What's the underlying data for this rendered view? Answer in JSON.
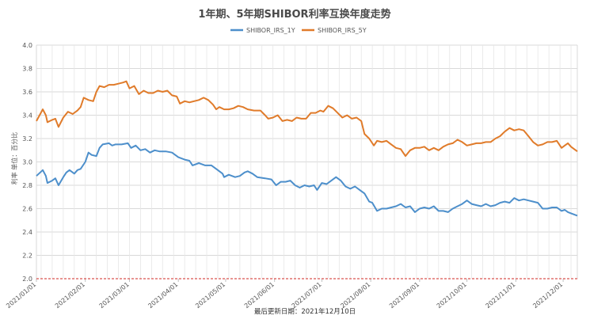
{
  "chart_data": {
    "type": "line",
    "title": "1年期、5年期SHIBOR利率互换年度走势",
    "ylabel": "利率 单位：百分比",
    "footer": "最后更新日期：2021年12月10日",
    "ylim": [
      2.0,
      4.0
    ],
    "yticks": [
      "2.0",
      "2.2",
      "2.4",
      "2.6",
      "2.8",
      "3.0",
      "3.2",
      "3.4",
      "3.6",
      "3.8",
      "4.0"
    ],
    "xlim": [
      "2021-01-01",
      "2021-12-10"
    ],
    "xticks": [
      "2021/01/01",
      "2021/02/01",
      "2021/03/01",
      "2021/04/01",
      "2021/05/01",
      "2021/06/01",
      "2021/07/01",
      "2021/08/01",
      "2021/09/01",
      "2021/10/01",
      "2021/11/01",
      "2021/12/01"
    ],
    "grid": true,
    "legend": "top-center",
    "reference_line": {
      "value": 2.0,
      "color": "#d9534f",
      "style": "dashed"
    },
    "series": [
      {
        "name": "SHIBOR_IRS_1Y",
        "color": "#4d8fcb",
        "points": [
          [
            "2021-01-01",
            2.88
          ],
          [
            "2021-01-05",
            2.93
          ],
          [
            "2021-01-07",
            2.88
          ],
          [
            "2021-01-08",
            2.82
          ],
          [
            "2021-01-11",
            2.84
          ],
          [
            "2021-01-13",
            2.86
          ],
          [
            "2021-01-15",
            2.8
          ],
          [
            "2021-01-18",
            2.87
          ],
          [
            "2021-01-20",
            2.91
          ],
          [
            "2021-01-22",
            2.93
          ],
          [
            "2021-01-25",
            2.9
          ],
          [
            "2021-01-27",
            2.93
          ],
          [
            "2021-01-29",
            2.94
          ],
          [
            "2021-02-01",
            3.0
          ],
          [
            "2021-02-03",
            3.08
          ],
          [
            "2021-02-05",
            3.06
          ],
          [
            "2021-02-08",
            3.05
          ],
          [
            "2021-02-10",
            3.12
          ],
          [
            "2021-02-12",
            3.15
          ],
          [
            "2021-02-16",
            3.16
          ],
          [
            "2021-02-18",
            3.14
          ],
          [
            "2021-02-20",
            3.15
          ],
          [
            "2021-02-24",
            3.15
          ],
          [
            "2021-02-28",
            3.16
          ],
          [
            "2021-03-02",
            3.12
          ],
          [
            "2021-03-05",
            3.14
          ],
          [
            "2021-03-08",
            3.1
          ],
          [
            "2021-03-11",
            3.11
          ],
          [
            "2021-03-14",
            3.08
          ],
          [
            "2021-03-17",
            3.1
          ],
          [
            "2021-03-20",
            3.09
          ],
          [
            "2021-03-24",
            3.09
          ],
          [
            "2021-03-28",
            3.08
          ],
          [
            "2021-04-01",
            3.04
          ],
          [
            "2021-04-05",
            3.02
          ],
          [
            "2021-04-08",
            3.01
          ],
          [
            "2021-04-10",
            2.97
          ],
          [
            "2021-04-14",
            2.99
          ],
          [
            "2021-04-18",
            2.97
          ],
          [
            "2021-04-22",
            2.97
          ],
          [
            "2021-04-26",
            2.93
          ],
          [
            "2021-04-29",
            2.9
          ],
          [
            "2021-04-30",
            2.87
          ],
          [
            "2021-05-03",
            2.89
          ],
          [
            "2021-05-07",
            2.87
          ],
          [
            "2021-05-10",
            2.88
          ],
          [
            "2021-05-13",
            2.91
          ],
          [
            "2021-05-15",
            2.92
          ],
          [
            "2021-05-18",
            2.9
          ],
          [
            "2021-05-21",
            2.87
          ],
          [
            "2021-05-26",
            2.86
          ],
          [
            "2021-05-30",
            2.85
          ],
          [
            "2021-06-02",
            2.8
          ],
          [
            "2021-06-05",
            2.83
          ],
          [
            "2021-06-08",
            2.83
          ],
          [
            "2021-06-11",
            2.84
          ],
          [
            "2021-06-14",
            2.8
          ],
          [
            "2021-06-17",
            2.78
          ],
          [
            "2021-06-20",
            2.8
          ],
          [
            "2021-06-23",
            2.79
          ],
          [
            "2021-06-26",
            2.8
          ],
          [
            "2021-06-28",
            2.76
          ],
          [
            "2021-07-01",
            2.82
          ],
          [
            "2021-07-04",
            2.81
          ],
          [
            "2021-07-07",
            2.84
          ],
          [
            "2021-07-10",
            2.87
          ],
          [
            "2021-07-13",
            2.84
          ],
          [
            "2021-07-16",
            2.79
          ],
          [
            "2021-07-19",
            2.77
          ],
          [
            "2021-07-22",
            2.79
          ],
          [
            "2021-07-25",
            2.76
          ],
          [
            "2021-07-28",
            2.73
          ],
          [
            "2021-07-31",
            2.66
          ],
          [
            "2021-08-02",
            2.65
          ],
          [
            "2021-08-05",
            2.58
          ],
          [
            "2021-08-08",
            2.6
          ],
          [
            "2021-08-11",
            2.6
          ],
          [
            "2021-08-14",
            2.61
          ],
          [
            "2021-08-17",
            2.62
          ],
          [
            "2021-08-20",
            2.64
          ],
          [
            "2021-08-23",
            2.61
          ],
          [
            "2021-08-26",
            2.62
          ],
          [
            "2021-08-29",
            2.57
          ],
          [
            "2021-09-01",
            2.6
          ],
          [
            "2021-09-04",
            2.61
          ],
          [
            "2021-09-07",
            2.6
          ],
          [
            "2021-09-10",
            2.62
          ],
          [
            "2021-09-13",
            2.58
          ],
          [
            "2021-09-16",
            2.58
          ],
          [
            "2021-09-19",
            2.57
          ],
          [
            "2021-09-22",
            2.6
          ],
          [
            "2021-09-25",
            2.62
          ],
          [
            "2021-09-28",
            2.64
          ],
          [
            "2021-10-01",
            2.67
          ],
          [
            "2021-10-04",
            2.64
          ],
          [
            "2021-10-07",
            2.63
          ],
          [
            "2021-10-10",
            2.62
          ],
          [
            "2021-10-13",
            2.64
          ],
          [
            "2021-10-16",
            2.62
          ],
          [
            "2021-10-19",
            2.63
          ],
          [
            "2021-10-22",
            2.65
          ],
          [
            "2021-10-25",
            2.66
          ],
          [
            "2021-10-28",
            2.65
          ],
          [
            "2021-10-31",
            2.69
          ],
          [
            "2021-11-03",
            2.67
          ],
          [
            "2021-11-06",
            2.68
          ],
          [
            "2021-11-09",
            2.67
          ],
          [
            "2021-11-12",
            2.66
          ],
          [
            "2021-11-15",
            2.65
          ],
          [
            "2021-11-18",
            2.6
          ],
          [
            "2021-11-21",
            2.6
          ],
          [
            "2021-11-24",
            2.61
          ],
          [
            "2021-11-27",
            2.61
          ],
          [
            "2021-11-30",
            2.58
          ],
          [
            "2021-12-02",
            2.59
          ],
          [
            "2021-12-04",
            2.57
          ],
          [
            "2021-12-06",
            2.56
          ],
          [
            "2021-12-08",
            2.55
          ],
          [
            "2021-12-10",
            2.54
          ]
        ]
      },
      {
        "name": "SHIBOR_IRS_5Y",
        "color": "#e07b2a",
        "points": [
          [
            "2021-01-01",
            3.35
          ],
          [
            "2021-01-05",
            3.45
          ],
          [
            "2021-01-07",
            3.4
          ],
          [
            "2021-01-08",
            3.34
          ],
          [
            "2021-01-11",
            3.36
          ],
          [
            "2021-01-13",
            3.37
          ],
          [
            "2021-01-15",
            3.3
          ],
          [
            "2021-01-18",
            3.38
          ],
          [
            "2021-01-21",
            3.43
          ],
          [
            "2021-01-24",
            3.41
          ],
          [
            "2021-01-27",
            3.44
          ],
          [
            "2021-01-29",
            3.47
          ],
          [
            "2021-01-31",
            3.55
          ],
          [
            "2021-02-03",
            3.53
          ],
          [
            "2021-02-06",
            3.52
          ],
          [
            "2021-02-08",
            3.6
          ],
          [
            "2021-02-10",
            3.65
          ],
          [
            "2021-02-13",
            3.64
          ],
          [
            "2021-02-16",
            3.66
          ],
          [
            "2021-02-19",
            3.66
          ],
          [
            "2021-02-22",
            3.67
          ],
          [
            "2021-02-25",
            3.68
          ],
          [
            "2021-02-27",
            3.69
          ],
          [
            "2021-03-01",
            3.63
          ],
          [
            "2021-03-04",
            3.65
          ],
          [
            "2021-03-07",
            3.58
          ],
          [
            "2021-03-10",
            3.61
          ],
          [
            "2021-03-13",
            3.59
          ],
          [
            "2021-03-16",
            3.59
          ],
          [
            "2021-03-19",
            3.61
          ],
          [
            "2021-03-22",
            3.6
          ],
          [
            "2021-03-25",
            3.61
          ],
          [
            "2021-03-28",
            3.57
          ],
          [
            "2021-03-31",
            3.56
          ],
          [
            "2021-04-02",
            3.5
          ],
          [
            "2021-04-05",
            3.52
          ],
          [
            "2021-04-08",
            3.51
          ],
          [
            "2021-04-11",
            3.52
          ],
          [
            "2021-04-14",
            3.53
          ],
          [
            "2021-04-17",
            3.55
          ],
          [
            "2021-04-20",
            3.53
          ],
          [
            "2021-04-23",
            3.49
          ],
          [
            "2021-04-25",
            3.45
          ],
          [
            "2021-04-27",
            3.47
          ],
          [
            "2021-04-30",
            3.45
          ],
          [
            "2021-05-03",
            3.45
          ],
          [
            "2021-05-06",
            3.46
          ],
          [
            "2021-05-09",
            3.48
          ],
          [
            "2021-05-12",
            3.47
          ],
          [
            "2021-05-15",
            3.45
          ],
          [
            "2021-05-19",
            3.44
          ],
          [
            "2021-05-23",
            3.44
          ],
          [
            "2021-05-26",
            3.4
          ],
          [
            "2021-05-28",
            3.37
          ],
          [
            "2021-05-31",
            3.38
          ],
          [
            "2021-06-03",
            3.4
          ],
          [
            "2021-06-06",
            3.35
          ],
          [
            "2021-06-09",
            3.36
          ],
          [
            "2021-06-12",
            3.35
          ],
          [
            "2021-06-15",
            3.38
          ],
          [
            "2021-06-18",
            3.37
          ],
          [
            "2021-06-21",
            3.37
          ],
          [
            "2021-06-24",
            3.42
          ],
          [
            "2021-06-27",
            3.42
          ],
          [
            "2021-06-30",
            3.44
          ],
          [
            "2021-07-02",
            3.43
          ],
          [
            "2021-07-05",
            3.48
          ],
          [
            "2021-07-08",
            3.46
          ],
          [
            "2021-07-11",
            3.42
          ],
          [
            "2021-07-14",
            3.38
          ],
          [
            "2021-07-17",
            3.4
          ],
          [
            "2021-07-20",
            3.37
          ],
          [
            "2021-07-23",
            3.38
          ],
          [
            "2021-07-26",
            3.35
          ],
          [
            "2021-07-28",
            3.24
          ],
          [
            "2021-07-31",
            3.2
          ],
          [
            "2021-08-03",
            3.14
          ],
          [
            "2021-08-05",
            3.18
          ],
          [
            "2021-08-08",
            3.17
          ],
          [
            "2021-08-11",
            3.18
          ],
          [
            "2021-08-14",
            3.15
          ],
          [
            "2021-08-17",
            3.12
          ],
          [
            "2021-08-20",
            3.11
          ],
          [
            "2021-08-23",
            3.05
          ],
          [
            "2021-08-26",
            3.1
          ],
          [
            "2021-08-29",
            3.12
          ],
          [
            "2021-09-01",
            3.12
          ],
          [
            "2021-09-04",
            3.13
          ],
          [
            "2021-09-07",
            3.1
          ],
          [
            "2021-09-10",
            3.12
          ],
          [
            "2021-09-13",
            3.1
          ],
          [
            "2021-09-16",
            3.13
          ],
          [
            "2021-09-19",
            3.15
          ],
          [
            "2021-09-22",
            3.16
          ],
          [
            "2021-09-25",
            3.19
          ],
          [
            "2021-09-28",
            3.17
          ],
          [
            "2021-10-01",
            3.14
          ],
          [
            "2021-10-04",
            3.15
          ],
          [
            "2021-10-07",
            3.16
          ],
          [
            "2021-10-10",
            3.16
          ],
          [
            "2021-10-13",
            3.17
          ],
          [
            "2021-10-16",
            3.17
          ],
          [
            "2021-10-19",
            3.2
          ],
          [
            "2021-10-22",
            3.22
          ],
          [
            "2021-10-25",
            3.26
          ],
          [
            "2021-10-28",
            3.29
          ],
          [
            "2021-10-31",
            3.27
          ],
          [
            "2021-11-03",
            3.28
          ],
          [
            "2021-11-06",
            3.27
          ],
          [
            "2021-11-09",
            3.22
          ],
          [
            "2021-11-12",
            3.17
          ],
          [
            "2021-11-15",
            3.14
          ],
          [
            "2021-11-18",
            3.15
          ],
          [
            "2021-11-21",
            3.17
          ],
          [
            "2021-11-24",
            3.17
          ],
          [
            "2021-11-27",
            3.18
          ],
          [
            "2021-11-30",
            3.12
          ],
          [
            "2021-12-02",
            3.14
          ],
          [
            "2021-12-04",
            3.16
          ],
          [
            "2021-12-06",
            3.13
          ],
          [
            "2021-12-08",
            3.11
          ],
          [
            "2021-12-10",
            3.09
          ]
        ]
      }
    ]
  }
}
